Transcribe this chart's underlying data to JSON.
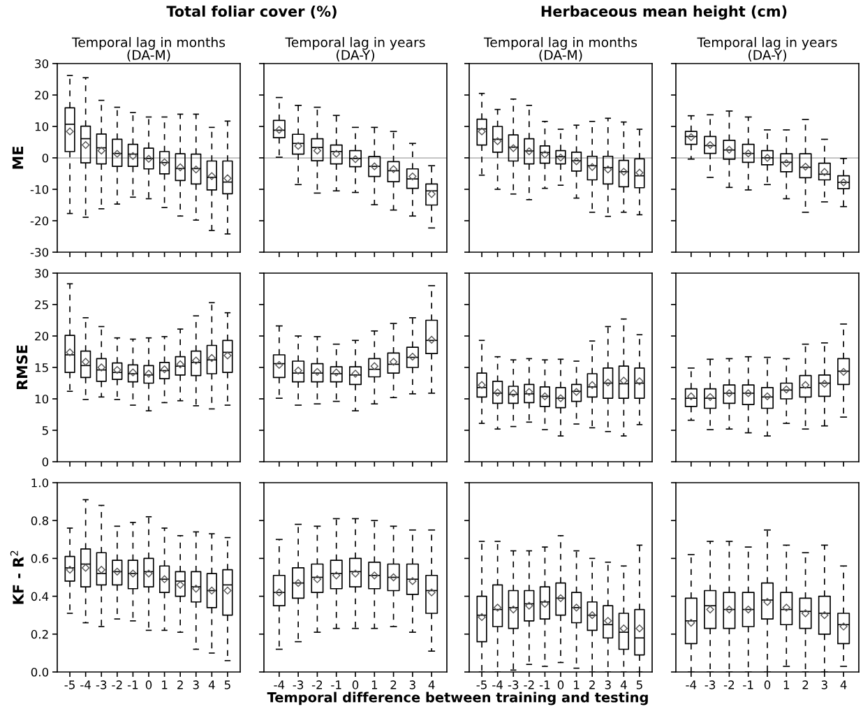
{
  "chart_data": [
    {
      "type": "box",
      "title": "Total foliar cover (%)",
      "subtitle": "Temporal lag in months\n(DA-M)",
      "ylabel": "ME",
      "categories": [
        "-5",
        "-4",
        "-3",
        "-2",
        "-1",
        "0",
        "1",
        "2",
        "3",
        "4",
        "5"
      ],
      "ylim": [
        -30,
        30
      ],
      "yticks": [
        -30,
        -20,
        -10,
        0,
        10,
        20,
        30
      ],
      "tick_labels": "y",
      "grid": false,
      "marker": "diamond",
      "ref_lines": [
        {
          "axis": "y",
          "value": 0,
          "color": "#a0a0a0"
        }
      ],
      "boxes": [
        {
          "low": -17.7,
          "q1": 2.0,
          "median": 10.7,
          "q3": 15.9,
          "high": 26.2,
          "mean": 8.4
        },
        {
          "low": -18.9,
          "q1": -1.6,
          "median": 6.1,
          "q3": 10.1,
          "high": 25.5,
          "mean": 4.1
        },
        {
          "low": -16.2,
          "q1": -1.9,
          "median": 3.2,
          "q3": 7.6,
          "high": 18.3,
          "mean": 2.3
        },
        {
          "low": -14.7,
          "q1": -2.7,
          "median": 1.4,
          "q3": 5.9,
          "high": 16.1,
          "mean": 1.3
        },
        {
          "low": -12.5,
          "q1": -2.7,
          "median": 1.2,
          "q3": 4.3,
          "high": 14.4,
          "mean": 0.6
        },
        {
          "low": -13.0,
          "q1": -3.5,
          "median": -0.2,
          "q3": 3.1,
          "high": 13.0,
          "mean": -0.3
        },
        {
          "low": -15.8,
          "q1": -5.1,
          "median": -1.5,
          "q3": 2.0,
          "high": 13.0,
          "mean": -1.4
        },
        {
          "low": -18.5,
          "q1": -7.2,
          "median": -3.4,
          "q3": 1.3,
          "high": 13.9,
          "mean": -3.0
        },
        {
          "low": -19.8,
          "q1": -8.3,
          "median": -3.4,
          "q3": 1.2,
          "high": 13.9,
          "mean": -3.7
        },
        {
          "low": -23.1,
          "q1": -10.2,
          "median": -6.2,
          "q3": -1.0,
          "high": 9.7,
          "mean": -5.8
        },
        {
          "low": -24.2,
          "q1": -11.4,
          "median": -7.7,
          "q3": -1.0,
          "high": 11.7,
          "mean": -6.5
        }
      ]
    },
    {
      "type": "box",
      "subtitle": "Temporal lag in years\n(DA-Y)",
      "categories": [
        "-4",
        "-3",
        "-2",
        "-1",
        "0",
        "1",
        "2",
        "3",
        "4"
      ],
      "ylim": [
        -30,
        30
      ],
      "yticks": [
        -30,
        -20,
        -10,
        0,
        10,
        20,
        30
      ],
      "tick_labels": false,
      "grid": false,
      "marker": "diamond",
      "ref_lines": [
        {
          "axis": "y",
          "value": 0,
          "color": "#a0a0a0"
        }
      ],
      "boxes": [
        {
          "low": 0.2,
          "q1": 6.4,
          "median": 8.8,
          "q3": 11.9,
          "high": 19.2,
          "mean": 8.9
        },
        {
          "low": -8.5,
          "q1": 1.2,
          "median": 4.6,
          "q3": 7.5,
          "high": 16.7,
          "mean": 3.8
        },
        {
          "low": -11.2,
          "q1": -0.9,
          "median": 3.3,
          "q3": 6.1,
          "high": 16.1,
          "mean": 2.3
        },
        {
          "low": -10.5,
          "q1": -1.9,
          "median": 2.0,
          "q3": 4.1,
          "high": 13.5,
          "mean": 1.3
        },
        {
          "low": -11.0,
          "q1": -2.8,
          "median": -0.2,
          "q3": 2.3,
          "high": 9.7,
          "mean": -0.4
        },
        {
          "low": -14.9,
          "q1": -5.9,
          "median": -2.7,
          "q3": 0.4,
          "high": 9.7,
          "mean": -2.7
        },
        {
          "low": -16.6,
          "q1": -7.6,
          "median": -4.1,
          "q3": -1.2,
          "high": 8.4,
          "mean": -3.6
        },
        {
          "low": -18.5,
          "q1": -9.7,
          "median": -6.7,
          "q3": -3.5,
          "high": 4.6,
          "mean": -5.9
        },
        {
          "low": -22.3,
          "q1": -15.0,
          "median": -10.5,
          "q3": -8.3,
          "high": -2.5,
          "mean": -11.5
        }
      ]
    },
    {
      "type": "box",
      "title": "Herbaceous mean height (cm)",
      "subtitle": "Temporal lag in months\n(DA-M)",
      "categories": [
        "-5",
        "-4",
        "-3",
        "-2",
        "-1",
        "0",
        "1",
        "2",
        "3",
        "4",
        "5"
      ],
      "ylim": [
        -30,
        30
      ],
      "yticks": [
        -30,
        -20,
        -10,
        0,
        10,
        20,
        30
      ],
      "tick_labels": false,
      "grid": false,
      "marker": "diamond",
      "ref_lines": [
        {
          "axis": "y",
          "value": 0,
          "color": "#a0a0a0"
        }
      ],
      "boxes": [
        {
          "low": -5.5,
          "q1": 4.1,
          "median": 9.2,
          "q3": 12.3,
          "high": 20.5,
          "mean": 8.4
        },
        {
          "low": -10.0,
          "q1": 1.8,
          "median": 5.9,
          "q3": 10.0,
          "high": 15.4,
          "mean": 5.3
        },
        {
          "low": -11.5,
          "q1": -1.0,
          "median": 3.4,
          "q3": 7.3,
          "high": 18.7,
          "mean": 3.1
        },
        {
          "low": -13.3,
          "q1": -1.9,
          "median": 2.2,
          "q3": 6.1,
          "high": 16.7,
          "mean": 2.1
        },
        {
          "low": -9.7,
          "q1": -1.7,
          "median": 1.7,
          "q3": 3.8,
          "high": 11.6,
          "mean": 1.1
        },
        {
          "low": -8.7,
          "q1": -1.9,
          "median": 0.4,
          "q3": 2.3,
          "high": 9.1,
          "mean": 0.1
        },
        {
          "low": -12.8,
          "q1": -4.2,
          "median": -0.9,
          "q3": 1.8,
          "high": 10.4,
          "mean": -1.1
        },
        {
          "low": -17.3,
          "q1": -7.0,
          "median": -2.5,
          "q3": 0.5,
          "high": 11.6,
          "mean": -2.9
        },
        {
          "low": -18.6,
          "q1": -8.3,
          "median": -3.1,
          "q3": 0.5,
          "high": 12.6,
          "mean": -3.7
        },
        {
          "low": -17.3,
          "q1": -9.2,
          "median": -4.4,
          "q3": -0.8,
          "high": 11.4,
          "mean": -4.4
        },
        {
          "low": -18.1,
          "q1": -9.5,
          "median": -5.7,
          "q3": -0.3,
          "high": 9.1,
          "mean": -4.7
        }
      ]
    },
    {
      "type": "box",
      "subtitle": "Temporal lag in years\n(DA-Y)",
      "categories": [
        "-4",
        "-3",
        "-2",
        "-1",
        "0",
        "1",
        "2",
        "3",
        "4"
      ],
      "ylim": [
        -30,
        30
      ],
      "yticks": [
        -30,
        -20,
        -10,
        0,
        10,
        20,
        30
      ],
      "tick_labels": false,
      "grid": false,
      "marker": "diamond",
      "ref_lines": [
        {
          "axis": "y",
          "value": 0,
          "color": "#a0a0a0"
        }
      ],
      "boxes": [
        {
          "low": -0.4,
          "q1": 4.3,
          "median": 6.8,
          "q3": 8.4,
          "high": 13.4,
          "mean": 6.6
        },
        {
          "low": -6.2,
          "q1": 1.4,
          "median": 3.9,
          "q3": 6.8,
          "high": 13.7,
          "mean": 4.1
        },
        {
          "low": -9.4,
          "q1": -0.4,
          "median": 2.5,
          "q3": 5.6,
          "high": 14.9,
          "mean": 2.6
        },
        {
          "low": -10.2,
          "q1": -1.4,
          "median": 1.4,
          "q3": 4.3,
          "high": 13.0,
          "mean": 1.4
        },
        {
          "low": -8.5,
          "q1": -2.2,
          "median": 0.0,
          "q3": 2.3,
          "high": 8.9,
          "mean": 0.0
        },
        {
          "low": -13.0,
          "q1": -4.4,
          "median": -1.4,
          "q3": 1.3,
          "high": 8.9,
          "mean": -1.7
        },
        {
          "low": -17.3,
          "q1": -6.3,
          "median": -3.0,
          "q3": 1.3,
          "high": 12.2,
          "mean": -2.8
        },
        {
          "low": -14.0,
          "q1": -7.0,
          "median": -5.2,
          "q3": -1.7,
          "high": 5.9,
          "mean": -4.5
        },
        {
          "low": -15.5,
          "q1": -9.8,
          "median": -7.8,
          "q3": -5.7,
          "high": -0.2,
          "mean": -7.8
        }
      ]
    },
    {
      "type": "box",
      "ylabel": "RMSE",
      "categories": [
        "-5",
        "-4",
        "-3",
        "-2",
        "-1",
        "0",
        "1",
        "2",
        "3",
        "4",
        "5"
      ],
      "ylim": [
        0,
        30
      ],
      "yticks": [
        0,
        5,
        10,
        15,
        20,
        25,
        30
      ],
      "tick_labels": "y",
      "grid": false,
      "marker": "diamond",
      "boxes": [
        {
          "low": 11.2,
          "q1": 14.2,
          "median": 17.0,
          "q3": 20.1,
          "high": 28.3,
          "mean": 17.4
        },
        {
          "low": 9.9,
          "q1": 13.4,
          "median": 15.3,
          "q3": 17.6,
          "high": 22.9,
          "mean": 15.9
        },
        {
          "low": 10.3,
          "q1": 12.8,
          "median": 14.6,
          "q3": 16.4,
          "high": 21.5,
          "mean": 15.0
        },
        {
          "low": 9.9,
          "q1": 13.1,
          "median": 14.2,
          "q3": 15.7,
          "high": 19.7,
          "mean": 14.6
        },
        {
          "low": 9.0,
          "q1": 12.7,
          "median": 14.0,
          "q3": 15.4,
          "high": 19.5,
          "mean": 14.2
        },
        {
          "low": 8.1,
          "q1": 12.5,
          "median": 13.8,
          "q3": 15.3,
          "high": 19.7,
          "mean": 14.0
        },
        {
          "low": 9.4,
          "q1": 13.2,
          "median": 14.5,
          "q3": 15.8,
          "high": 19.9,
          "mean": 14.7
        },
        {
          "low": 9.7,
          "q1": 13.8,
          "median": 15.2,
          "q3": 16.7,
          "high": 21.1,
          "mean": 15.5
        },
        {
          "low": 8.9,
          "q1": 13.7,
          "median": 15.8,
          "q3": 17.6,
          "high": 23.2,
          "mean": 16.1
        },
        {
          "low": 8.4,
          "q1": 14.0,
          "median": 16.2,
          "q3": 18.5,
          "high": 25.3,
          "mean": 16.5
        },
        {
          "low": 9.0,
          "q1": 14.2,
          "median": 17.4,
          "q3": 19.3,
          "high": 23.7,
          "mean": 16.9
        }
      ]
    },
    {
      "type": "box",
      "categories": [
        "-4",
        "-3",
        "-2",
        "-1",
        "0",
        "1",
        "2",
        "3",
        "4"
      ],
      "ylim": [
        0,
        30
      ],
      "yticks": [
        0,
        5,
        10,
        15,
        20,
        25,
        30
      ],
      "tick_labels": false,
      "grid": false,
      "marker": "diamond",
      "boxes": [
        {
          "low": 10.1,
          "q1": 13.4,
          "median": 15.6,
          "q3": 17.0,
          "high": 21.6,
          "mean": 15.4
        },
        {
          "low": 9.0,
          "q1": 12.7,
          "median": 14.1,
          "q3": 16.0,
          "high": 20.0,
          "mean": 14.5
        },
        {
          "low": 9.2,
          "q1": 12.7,
          "median": 14.1,
          "q3": 15.6,
          "high": 19.9,
          "mean": 14.3
        },
        {
          "low": 9.6,
          "q1": 12.7,
          "median": 14.0,
          "q3": 15.1,
          "high": 18.7,
          "mean": 14.2
        },
        {
          "low": 8.1,
          "q1": 12.3,
          "median": 13.8,
          "q3": 15.1,
          "high": 19.3,
          "mean": 14.0
        },
        {
          "low": 9.2,
          "q1": 13.5,
          "median": 14.7,
          "q3": 16.4,
          "high": 20.8,
          "mean": 15.2
        },
        {
          "low": 10.2,
          "q1": 14.1,
          "median": 15.5,
          "q3": 17.3,
          "high": 22.0,
          "mean": 15.9
        },
        {
          "low": 10.8,
          "q1": 15.0,
          "median": 16.6,
          "q3": 18.2,
          "high": 22.9,
          "mean": 16.7
        },
        {
          "low": 10.9,
          "q1": 17.2,
          "median": 19.3,
          "q3": 22.5,
          "high": 28.0,
          "mean": 19.4
        }
      ]
    },
    {
      "type": "box",
      "categories": [
        "-5",
        "-4",
        "-3",
        "-2",
        "-1",
        "0",
        "1",
        "2",
        "3",
        "4",
        "5"
      ],
      "ylim": [
        0,
        30
      ],
      "yticks": [
        0,
        5,
        10,
        15,
        20,
        25,
        30
      ],
      "tick_labels": false,
      "grid": false,
      "marker": "diamond",
      "boxes": [
        {
          "low": 6.1,
          "q1": 10.3,
          "median": 11.8,
          "q3": 14.1,
          "high": 19.3,
          "mean": 12.2
        },
        {
          "low": 5.2,
          "q1": 9.3,
          "median": 10.9,
          "q3": 12.8,
          "high": 16.7,
          "mean": 11.0
        },
        {
          "low": 5.6,
          "q1": 9.3,
          "median": 10.7,
          "q3": 12.0,
          "high": 16.2,
          "mean": 10.9
        },
        {
          "low": 6.3,
          "q1": 9.4,
          "median": 10.8,
          "q3": 12.3,
          "high": 16.4,
          "mean": 11.1
        },
        {
          "low": 5.1,
          "q1": 8.8,
          "median": 10.4,
          "q3": 11.9,
          "high": 16.2,
          "mean": 10.4
        },
        {
          "low": 4.1,
          "q1": 8.6,
          "median": 10.1,
          "q3": 11.8,
          "high": 16.3,
          "mean": 10.1
        },
        {
          "low": 6.0,
          "q1": 9.6,
          "median": 11.2,
          "q3": 12.3,
          "high": 16.0,
          "mean": 11.1
        },
        {
          "low": 5.4,
          "q1": 10.3,
          "median": 11.9,
          "q3": 14.0,
          "high": 19.2,
          "mean": 12.2
        },
        {
          "low": 4.8,
          "q1": 10.1,
          "median": 12.5,
          "q3": 14.9,
          "high": 21.5,
          "mean": 12.6
        },
        {
          "low": 4.1,
          "q1": 10.1,
          "median": 12.4,
          "q3": 15.2,
          "high": 22.7,
          "mean": 12.9
        },
        {
          "low": 5.9,
          "q1": 10.1,
          "median": 12.5,
          "q3": 14.9,
          "high": 20.2,
          "mean": 12.8
        }
      ]
    },
    {
      "type": "box",
      "categories": [
        "-4",
        "-3",
        "-2",
        "-1",
        "0",
        "1",
        "2",
        "3",
        "4"
      ],
      "ylim": [
        0,
        30
      ],
      "yticks": [
        0,
        5,
        10,
        15,
        20,
        25,
        30
      ],
      "tick_labels": false,
      "grid": false,
      "marker": "diamond",
      "boxes": [
        {
          "low": 6.6,
          "q1": 8.8,
          "median": 10.1,
          "q3": 11.6,
          "high": 14.9,
          "mean": 10.4
        },
        {
          "low": 5.1,
          "q1": 8.5,
          "median": 10.1,
          "q3": 11.6,
          "high": 16.3,
          "mean": 10.3
        },
        {
          "low": 5.2,
          "q1": 9.3,
          "median": 10.9,
          "q3": 12.2,
          "high": 16.4,
          "mean": 10.9
        },
        {
          "low": 4.6,
          "q1": 9.1,
          "median": 10.9,
          "q3": 12.2,
          "high": 16.7,
          "mean": 10.9
        },
        {
          "low": 4.1,
          "q1": 8.5,
          "median": 10.3,
          "q3": 11.8,
          "high": 16.6,
          "mean": 10.4
        },
        {
          "low": 6.1,
          "q1": 10.0,
          "median": 11.4,
          "q3": 12.5,
          "high": 16.4,
          "mean": 11.5
        },
        {
          "low": 5.2,
          "q1": 10.3,
          "median": 11.8,
          "q3": 13.7,
          "high": 18.7,
          "mean": 12.2
        },
        {
          "low": 5.7,
          "q1": 10.4,
          "median": 12.5,
          "q3": 13.8,
          "high": 18.9,
          "mean": 12.4
        },
        {
          "low": 7.1,
          "q1": 12.3,
          "median": 14.4,
          "q3": 16.4,
          "high": 21.9,
          "mean": 14.3
        }
      ]
    },
    {
      "type": "box",
      "ylabel": "KF - R$^{2}$",
      "categories": [
        "-5",
        "-4",
        "-3",
        "-2",
        "-1",
        "0",
        "1",
        "2",
        "3",
        "4",
        "5"
      ],
      "ylim": [
        0,
        1
      ],
      "yticks": [
        {
          "value": 0,
          "label": "0.0"
        },
        0.2,
        0.4,
        0.6,
        0.8,
        {
          "value": 1,
          "label": "1.0"
        }
      ],
      "grid": false,
      "marker": "diamond",
      "boxes": [
        {
          "low": 0.31,
          "q1": 0.48,
          "median": 0.55,
          "q3": 0.61,
          "high": 0.76,
          "mean": 0.54
        },
        {
          "low": 0.26,
          "q1": 0.45,
          "median": 0.57,
          "q3": 0.65,
          "high": 0.91,
          "mean": 0.55
        },
        {
          "low": 0.24,
          "q1": 0.46,
          "median": 0.52,
          "q3": 0.63,
          "high": 0.88,
          "mean": 0.54
        },
        {
          "low": 0.28,
          "q1": 0.46,
          "median": 0.53,
          "q3": 0.59,
          "high": 0.77,
          "mean": 0.53
        },
        {
          "low": 0.27,
          "q1": 0.44,
          "median": 0.52,
          "q3": 0.59,
          "high": 0.79,
          "mean": 0.52
        },
        {
          "low": 0.22,
          "q1": 0.45,
          "median": 0.53,
          "q3": 0.6,
          "high": 0.82,
          "mean": 0.52
        },
        {
          "low": 0.22,
          "q1": 0.42,
          "median": 0.49,
          "q3": 0.56,
          "high": 0.76,
          "mean": 0.49
        },
        {
          "low": 0.21,
          "q1": 0.4,
          "median": 0.48,
          "q3": 0.53,
          "high": 0.72,
          "mean": 0.46
        },
        {
          "low": 0.12,
          "q1": 0.37,
          "median": 0.45,
          "q3": 0.53,
          "high": 0.74,
          "mean": 0.44
        },
        {
          "low": 0.1,
          "q1": 0.34,
          "median": 0.43,
          "q3": 0.52,
          "high": 0.73,
          "mean": 0.43
        },
        {
          "low": 0.06,
          "q1": 0.3,
          "median": 0.46,
          "q3": 0.54,
          "high": 0.71,
          "mean": 0.43
        }
      ]
    },
    {
      "type": "box",
      "xlabel": "Temporal difference between training and testing",
      "categories": [
        "-4",
        "-3",
        "-2",
        "-1",
        "0",
        "1",
        "2",
        "3",
        "4"
      ],
      "ylim": [
        0,
        1
      ],
      "yticks": [
        0,
        0.2,
        0.4,
        0.6,
        0.8,
        1
      ],
      "tick_labels": "x",
      "grid": false,
      "marker": "diamond",
      "boxes": [
        {
          "low": 0.12,
          "q1": 0.35,
          "median": 0.42,
          "q3": 0.51,
          "high": 0.7,
          "mean": 0.42
        },
        {
          "low": 0.16,
          "q1": 0.39,
          "median": 0.47,
          "q3": 0.55,
          "high": 0.78,
          "mean": 0.47
        },
        {
          "low": 0.21,
          "q1": 0.42,
          "median": 0.5,
          "q3": 0.57,
          "high": 0.77,
          "mean": 0.49
        },
        {
          "low": 0.23,
          "q1": 0.44,
          "median": 0.52,
          "q3": 0.59,
          "high": 0.81,
          "mean": 0.51
        },
        {
          "low": 0.23,
          "q1": 0.45,
          "median": 0.53,
          "q3": 0.6,
          "high": 0.81,
          "mean": 0.52
        },
        {
          "low": 0.23,
          "q1": 0.44,
          "median": 0.51,
          "q3": 0.58,
          "high": 0.8,
          "mean": 0.51
        },
        {
          "low": 0.24,
          "q1": 0.43,
          "median": 0.5,
          "q3": 0.57,
          "high": 0.77,
          "mean": 0.5
        },
        {
          "low": 0.21,
          "q1": 0.41,
          "median": 0.49,
          "q3": 0.57,
          "high": 0.75,
          "mean": 0.48
        },
        {
          "low": 0.11,
          "q1": 0.31,
          "median": 0.43,
          "q3": 0.51,
          "high": 0.75,
          "mean": 0.42
        }
      ]
    },
    {
      "type": "box",
      "categories": [
        "-5",
        "-4",
        "-3",
        "-2",
        "-1",
        "0",
        "1",
        "2",
        "3",
        "4",
        "5"
      ],
      "ylim": [
        0,
        1
      ],
      "yticks": [
        0,
        0.2,
        0.4,
        0.6,
        0.8,
        1
      ],
      "tick_labels": "x",
      "grid": false,
      "marker": "diamond",
      "boxes": [
        {
          "low": 0.0,
          "q1": 0.16,
          "median": 0.3,
          "q3": 0.4,
          "high": 0.69,
          "mean": 0.29
        },
        {
          "low": 0.0,
          "q1": 0.24,
          "median": 0.33,
          "q3": 0.46,
          "high": 0.69,
          "mean": 0.34
        },
        {
          "low": 0.01,
          "q1": 0.23,
          "median": 0.34,
          "q3": 0.43,
          "high": 0.64,
          "mean": 0.33
        },
        {
          "low": 0.04,
          "q1": 0.27,
          "median": 0.36,
          "q3": 0.43,
          "high": 0.64,
          "mean": 0.35
        },
        {
          "low": 0.03,
          "q1": 0.28,
          "median": 0.37,
          "q3": 0.45,
          "high": 0.66,
          "mean": 0.36
        },
        {
          "low": 0.05,
          "q1": 0.3,
          "median": 0.39,
          "q3": 0.47,
          "high": 0.72,
          "mean": 0.39
        },
        {
          "low": 0.02,
          "q1": 0.26,
          "median": 0.34,
          "q3": 0.42,
          "high": 0.64,
          "mean": 0.34
        },
        {
          "low": 0.0,
          "q1": 0.22,
          "median": 0.3,
          "q3": 0.37,
          "high": 0.6,
          "mean": 0.3
        },
        {
          "low": 0.0,
          "q1": 0.18,
          "median": 0.25,
          "q3": 0.35,
          "high": 0.58,
          "mean": 0.27
        },
        {
          "low": 0.0,
          "q1": 0.12,
          "median": 0.21,
          "q3": 0.31,
          "high": 0.56,
          "mean": 0.23
        },
        {
          "low": 0.0,
          "q1": 0.09,
          "median": 0.18,
          "q3": 0.33,
          "high": 0.67,
          "mean": 0.23
        }
      ]
    },
    {
      "type": "box",
      "categories": [
        "-4",
        "-3",
        "-2",
        "-1",
        "0",
        "1",
        "2",
        "3",
        "4"
      ],
      "ylim": [
        0,
        1
      ],
      "yticks": [
        0,
        0.2,
        0.4,
        0.6,
        0.8,
        1
      ],
      "tick_labels": "x",
      "grid": false,
      "marker": "diamond",
      "boxes": [
        {
          "low": 0.0,
          "q1": 0.15,
          "median": 0.27,
          "q3": 0.39,
          "high": 0.62,
          "mean": 0.26
        },
        {
          "low": 0.0,
          "q1": 0.23,
          "median": 0.35,
          "q3": 0.43,
          "high": 0.69,
          "mean": 0.33
        },
        {
          "low": 0.0,
          "q1": 0.23,
          "median": 0.33,
          "q3": 0.42,
          "high": 0.69,
          "mean": 0.33
        },
        {
          "low": 0.0,
          "q1": 0.24,
          "median": 0.33,
          "q3": 0.42,
          "high": 0.66,
          "mean": 0.33
        },
        {
          "low": 0.0,
          "q1": 0.28,
          "median": 0.38,
          "q3": 0.47,
          "high": 0.75,
          "mean": 0.37
        },
        {
          "low": 0.03,
          "q1": 0.25,
          "median": 0.33,
          "q3": 0.42,
          "high": 0.67,
          "mean": 0.34
        },
        {
          "low": 0.0,
          "q1": 0.23,
          "median": 0.32,
          "q3": 0.39,
          "high": 0.63,
          "mean": 0.31
        },
        {
          "low": 0.0,
          "q1": 0.2,
          "median": 0.31,
          "q3": 0.4,
          "high": 0.67,
          "mean": 0.3
        },
        {
          "low": 0.03,
          "q1": 0.15,
          "median": 0.25,
          "q3": 0.31,
          "high": 0.56,
          "mean": 0.24
        }
      ]
    }
  ]
}
